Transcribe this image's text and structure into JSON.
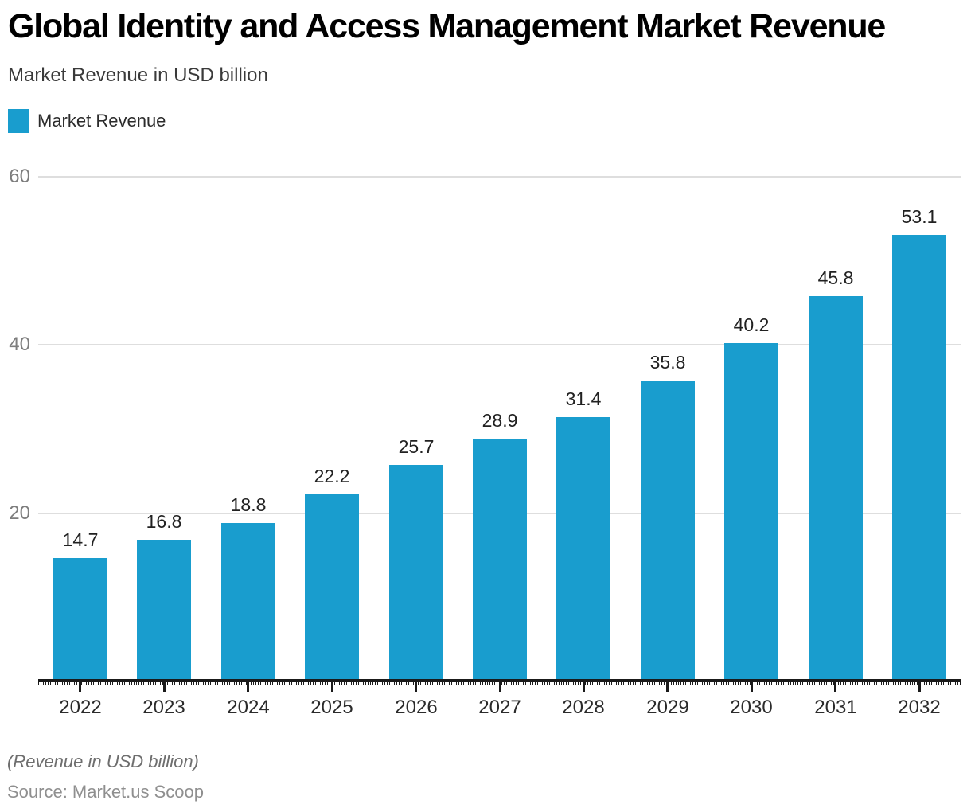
{
  "header": {
    "title": "Global Identity and Access Management Market Revenue",
    "subtitle": "Market Revenue in USD billion"
  },
  "legend": {
    "items": [
      {
        "label": "Market Revenue",
        "color": "#199dce"
      }
    ]
  },
  "chart_data": {
    "type": "bar",
    "title": "Global Identity and Access Management Market Revenue",
    "subtitle": "Market Revenue in USD billion",
    "series": [
      {
        "name": "Market Revenue",
        "values": [
          14.7,
          16.8,
          18.8,
          22.2,
          25.7,
          28.9,
          31.4,
          35.8,
          40.2,
          45.8,
          53.1
        ]
      }
    ],
    "categories": [
      "2022",
      "2023",
      "2024",
      "2025",
      "2026",
      "2027",
      "2028",
      "2029",
      "2030",
      "2031",
      "2032"
    ],
    "xlabel": "",
    "ylabel": "",
    "ylim": [
      0,
      60
    ],
    "yticks": [
      20,
      40,
      60
    ],
    "grid": true,
    "legend_position": "top-left",
    "bar_color": "#199dce",
    "value_labels_shown": true
  },
  "footer": {
    "note": "(Revenue in USD billion)",
    "source": "Source: Market.us Scoop"
  }
}
